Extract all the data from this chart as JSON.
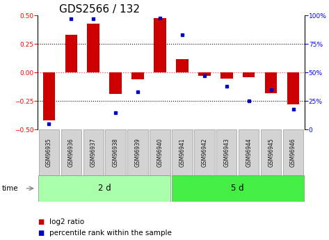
{
  "title": "GDS2566 / 132",
  "samples": [
    "GSM96935",
    "GSM96936",
    "GSM96937",
    "GSM96938",
    "GSM96939",
    "GSM96940",
    "GSM96941",
    "GSM96942",
    "GSM96943",
    "GSM96944",
    "GSM96945",
    "GSM96946"
  ],
  "log2_ratio": [
    -0.42,
    0.33,
    0.43,
    -0.19,
    -0.06,
    0.48,
    0.12,
    -0.03,
    -0.05,
    -0.04,
    -0.18,
    -0.28
  ],
  "percentile": [
    5,
    97,
    97,
    15,
    33,
    98,
    83,
    47,
    38,
    25,
    35,
    18
  ],
  "groups": [
    {
      "label": "2 d",
      "start": 0,
      "end": 6,
      "color": "#90EE90"
    },
    {
      "label": "5 d",
      "start": 6,
      "end": 12,
      "color": "#32CD32"
    }
  ],
  "ylim_left": [
    -0.5,
    0.5
  ],
  "ylim_right": [
    0,
    100
  ],
  "yticks_left": [
    -0.5,
    -0.25,
    0,
    0.25,
    0.5
  ],
  "yticks_right": [
    0,
    25,
    50,
    75,
    100
  ],
  "bar_color": "#CC0000",
  "dot_color": "#0000CC",
  "zero_line_color": "#FF4444",
  "dotted_line_color": "#000000",
  "legend_bar_label": "log2 ratio",
  "legend_dot_label": "percentile rank within the sample",
  "time_label": "time",
  "title_fontsize": 11,
  "tick_fontsize": 6.5,
  "sample_fontsize": 5.5,
  "group_fontsize": 8.5,
  "legend_fontsize": 7.5,
  "group1_color": "#AAFFAA",
  "group2_color": "#44EE44"
}
